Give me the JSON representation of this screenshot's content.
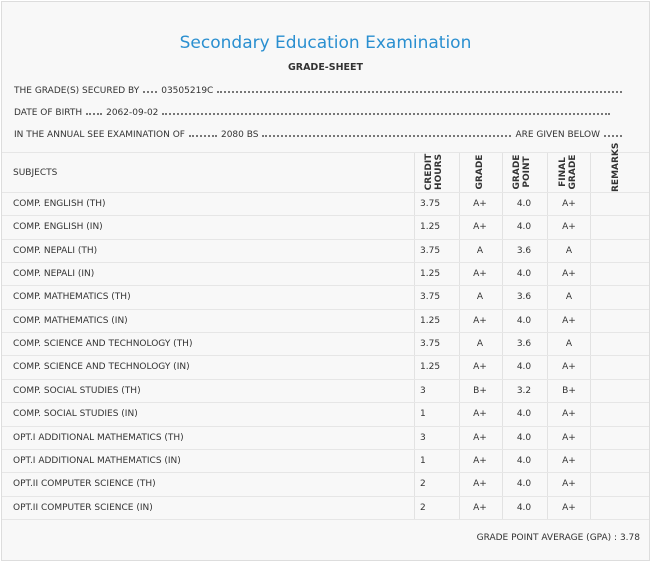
{
  "header": {
    "title": "Secondary Education Examination",
    "subtitle": "GRADE-SHEET"
  },
  "info": {
    "secured_by_label": "THE GRADE(S) SECURED BY",
    "secured_by": "03505219C",
    "dob_label": "DATE OF BIRTH",
    "dob": "2062-09-02",
    "exam_label": "IN THE ANNUAL SEE EXAMINATION OF",
    "exam": "2080 BS",
    "exam_suffix": "ARE GIVEN BELOW"
  },
  "table": {
    "columns": [
      [
        "SUBJECTS"
      ],
      [
        "CREDIT",
        "HOURS"
      ],
      [
        "GRADE"
      ],
      [
        "GRADE",
        "POINT"
      ],
      [
        "FINAL",
        "GRADE"
      ],
      [
        "REMARKS"
      ]
    ],
    "rows": [
      [
        "COMP. ENGLISH (TH)",
        "3.75",
        "A+",
        "4.0",
        "A+"
      ],
      [
        "COMP. ENGLISH (IN)",
        "1.25",
        "A+",
        "4.0",
        "A+"
      ],
      [
        "COMP. NEPALI (TH)",
        "3.75",
        "A",
        "3.6",
        "A"
      ],
      [
        "COMP. NEPALI (IN)",
        "1.25",
        "A+",
        "4.0",
        "A+"
      ],
      [
        "COMP. MATHEMATICS (TH)",
        "3.75",
        "A",
        "3.6",
        "A"
      ],
      [
        "COMP. MATHEMATICS (IN)",
        "1.25",
        "A+",
        "4.0",
        "A+"
      ],
      [
        "COMP. SCIENCE AND TECHNOLOGY (TH)",
        "3.75",
        "A",
        "3.6",
        "A"
      ],
      [
        "COMP. SCIENCE AND TECHNOLOGY (IN)",
        "1.25",
        "A+",
        "4.0",
        "A+"
      ],
      [
        "COMP. SOCIAL STUDIES (TH)",
        "3",
        "B+",
        "3.2",
        "B+"
      ],
      [
        "COMP. SOCIAL STUDIES (IN)",
        "1",
        "A+",
        "4.0",
        "A+"
      ],
      [
        "OPT.I ADDITIONAL MATHEMATICS (TH)",
        "3",
        "A+",
        "4.0",
        "A+"
      ],
      [
        "OPT.I ADDITIONAL MATHEMATICS (IN)",
        "1",
        "A+",
        "4.0",
        "A+"
      ],
      [
        "OPT.II COMPUTER SCIENCE (TH)",
        "2",
        "A+",
        "4.0",
        "A+"
      ],
      [
        "OPT.II COMPUTER SCIENCE (IN)",
        "2",
        "A+",
        "4.0",
        "A+"
      ]
    ]
  },
  "footer": {
    "gpa_label": "GRADE POINT AVERAGE (GPA) :",
    "gpa": "3.78"
  }
}
